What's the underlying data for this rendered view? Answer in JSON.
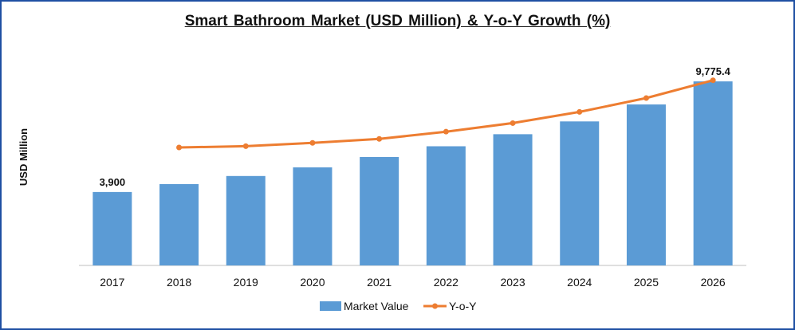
{
  "chart_data": {
    "type": "bar",
    "title": "Smart Bathroom Market (USD Million) & Y-o-Y Growth (%)",
    "ylabel": "USD Million",
    "xlabel": "",
    "categories": [
      "2017",
      "2018",
      "2019",
      "2020",
      "2021",
      "2022",
      "2023",
      "2024",
      "2025",
      "2026"
    ],
    "series": [
      {
        "name": "Market Value",
        "kind": "bar",
        "color": "#5b9bd5",
        "values": [
          3900,
          4320,
          4750,
          5210,
          5760,
          6330,
          6970,
          7650,
          8550,
          9775.4
        ]
      },
      {
        "name": "Y-o-Y",
        "kind": "line",
        "color": "#ed7d31",
        "values": [
          null,
          1.9,
          2.1,
          2.6,
          3.2,
          4.3,
          5.6,
          7.3,
          9.4,
          12.1
        ]
      }
    ],
    "data_labels": [
      {
        "index": 0,
        "text": "3,900"
      },
      {
        "index": 9,
        "text": "9,775.4"
      }
    ],
    "ylim": [
      0,
      10500
    ],
    "y2lim": [
      -16,
      14
    ],
    "grid": false,
    "legend_position": "bottom"
  }
}
